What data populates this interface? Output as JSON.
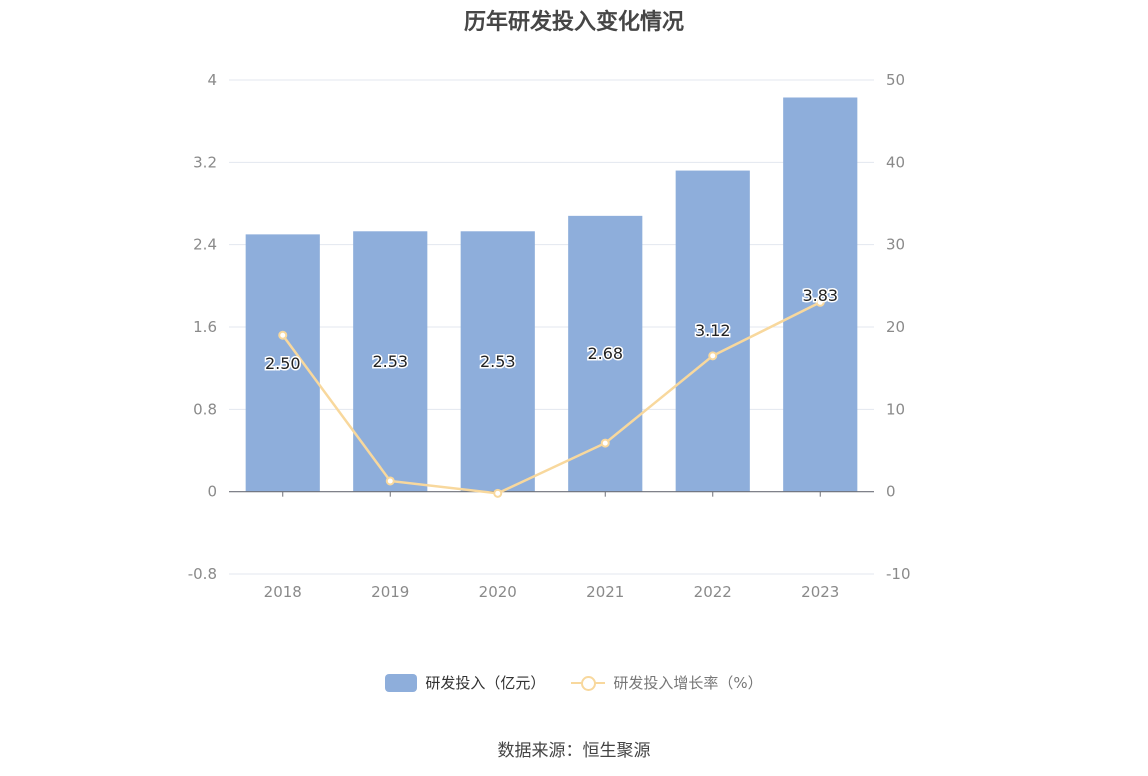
{
  "title": "历年研发投入变化情况",
  "source": "数据来源：恒生聚源",
  "colors": {
    "bar": "#8eaedb",
    "line": "#f8d89d",
    "grid": "#e3e7ef",
    "axis": "#6e7079",
    "tick_text": "#8a8a8a"
  },
  "legend": {
    "bar_label": "研发投入（亿元）",
    "line_label": "研发投入增长率（%）"
  },
  "chart_data": {
    "type": "bar",
    "categories": [
      "2018",
      "2019",
      "2020",
      "2021",
      "2022",
      "2023"
    ],
    "series": [
      {
        "name": "研发投入（亿元）",
        "type": "bar",
        "axis": "left",
        "values": [
          2.5,
          2.53,
          2.53,
          2.68,
          3.12,
          3.83
        ],
        "labels": [
          "2.50",
          "2.53",
          "2.53",
          "2.68",
          "3.12",
          "3.83"
        ]
      },
      {
        "name": "研发投入增长率（%）",
        "type": "line",
        "axis": "right",
        "values": [
          19.0,
          1.3,
          -0.2,
          5.9,
          16.5,
          23.0
        ]
      }
    ],
    "y_left": {
      "min": -0.8,
      "max": 4,
      "ticks": [
        "-0.8",
        "0",
        "0.8",
        "1.6",
        "2.4",
        "3.2",
        "4"
      ]
    },
    "y_right": {
      "min": -10,
      "max": 50,
      "ticks": [
        "-10",
        "0",
        "10",
        "20",
        "30",
        "40",
        "50"
      ]
    },
    "grid": true,
    "legend_position": "bottom"
  }
}
